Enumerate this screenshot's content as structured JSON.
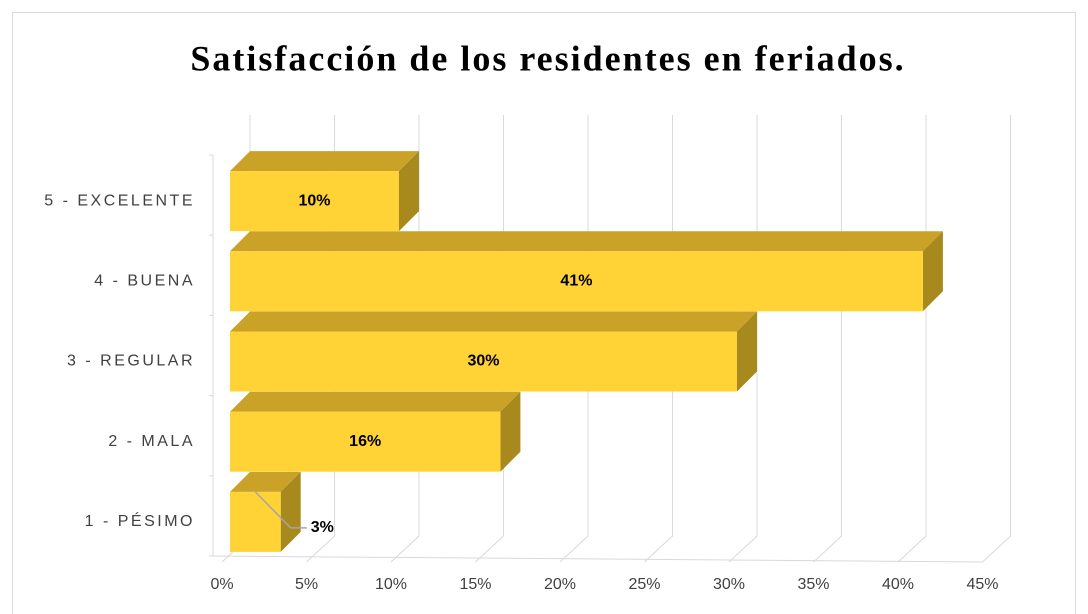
{
  "chart_data": {
    "type": "bar3d_horizontal",
    "title": "Satisfacción de los residentes en feriados.",
    "categories": [
      "1 - PÉSIMO",
      "2 - MALA",
      "3 - REGULAR",
      "4 - BUENA",
      "5 - EXCELENTE"
    ],
    "values": [
      3,
      16,
      30,
      41,
      10
    ],
    "value_labels": [
      "3%",
      "16%",
      "30%",
      "41%",
      "10%"
    ],
    "color": "#FFD335",
    "xlim": [
      0,
      45
    ],
    "xticks": [
      {
        "value": 0,
        "label": "0%"
      },
      {
        "value": 5,
        "label": "5%"
      },
      {
        "value": 10,
        "label": "10%"
      },
      {
        "value": 15,
        "label": "15%"
      },
      {
        "value": 20,
        "label": "20%"
      },
      {
        "value": 25,
        "label": "25%"
      },
      {
        "value": 30,
        "label": "30%"
      },
      {
        "value": 35,
        "label": "35%"
      },
      {
        "value": 40,
        "label": "40%"
      },
      {
        "value": 45,
        "label": "45%"
      }
    ],
    "grid": true
  }
}
